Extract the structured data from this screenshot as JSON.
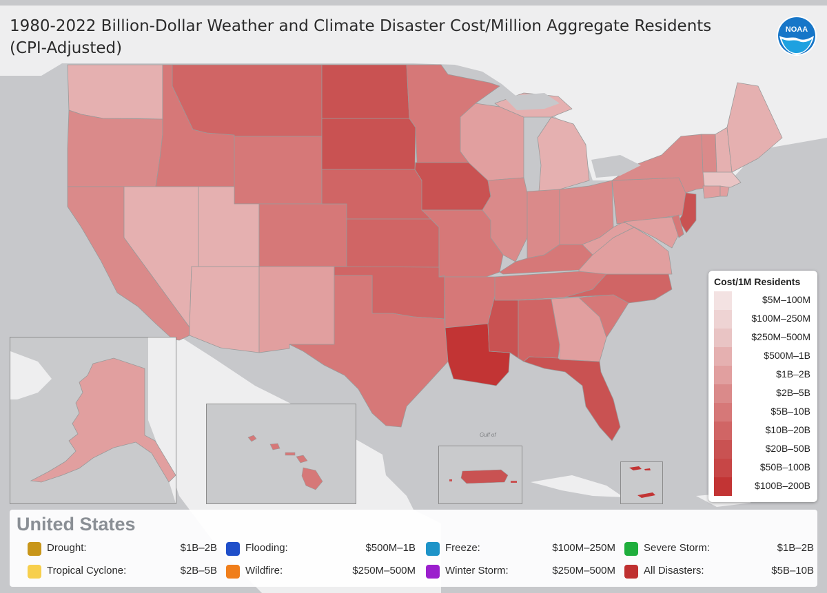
{
  "title": {
    "line1": "1980-2022 Billion-Dollar Weather and Climate Disaster Cost/Million Aggregate Residents",
    "line2": "(CPI-Adjusted)"
  },
  "logo": {
    "text": "NOAA",
    "icon": "noaa-logo"
  },
  "map": {
    "water_color": "#c7c8cb",
    "land_color": "#eeeeef",
    "gulf_label": "Gulf of"
  },
  "legend": {
    "title": "Cost/1M Residents",
    "items": [
      {
        "label": "$5M–100M",
        "color": "#f3e2e2"
      },
      {
        "label": "$100M–250M",
        "color": "#eed3d3"
      },
      {
        "label": "$250M–500M",
        "color": "#e9c4c4"
      },
      {
        "label": "$500M–1B",
        "color": "#e5b0b0"
      },
      {
        "label": "$1B–2B",
        "color": "#e19f9f"
      },
      {
        "label": "$2B–5B",
        "color": "#da8a8a"
      },
      {
        "label": "$5B–10B",
        "color": "#d67878"
      },
      {
        "label": "$10B–20B",
        "color": "#d06565"
      },
      {
        "label": "$20B–50B",
        "color": "#c95252"
      },
      {
        "label": "$50B–100B",
        "color": "#c74646"
      },
      {
        "label": "$100B–200B",
        "color": "#c23434"
      }
    ]
  },
  "summary": {
    "country": "United States",
    "stats": [
      {
        "label": "Drought:",
        "value": "$1B–2B",
        "color": "#c8961a"
      },
      {
        "label": "Flooding:",
        "value": "$500M–1B",
        "color": "#1f4fc9"
      },
      {
        "label": "Freeze:",
        "value": "$100M–250M",
        "color": "#1e94c8"
      },
      {
        "label": "Severe Storm:",
        "value": "$1B–2B",
        "color": "#1fae3c"
      },
      {
        "label": "Tropical Cyclone:",
        "value": "$2B–5B",
        "color": "#f7cf4d"
      },
      {
        "label": "Wildfire:",
        "value": "$250M–500M",
        "color": "#f07e1b"
      },
      {
        "label": "Winter Storm:",
        "value": "$250M–500M",
        "color": "#9b1fcd"
      },
      {
        "label": "All Disasters:",
        "value": "$5B–10B",
        "color": "#bf3030"
      }
    ]
  }
}
